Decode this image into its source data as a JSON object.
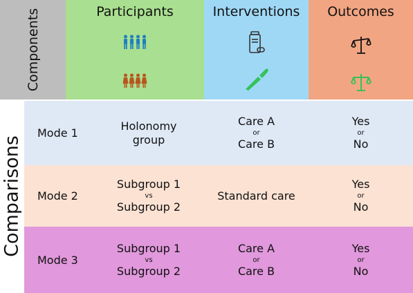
{
  "header": {
    "components": "Components",
    "participants": "Participants",
    "interventions": "Interventions",
    "outcomes": "Outcomes"
  },
  "icons": {
    "participants_top": "people-group-icon",
    "participants_bottom": "people-group-icon",
    "interventions_top": "medicine-bottle-icon",
    "interventions_bottom": "scalpel-icon",
    "outcomes_top": "balance-scale-icon",
    "outcomes_bottom": "balance-scale-icon"
  },
  "colors": {
    "components_bg": "#bdbdbd",
    "participants_bg": "#a9df90",
    "interventions_bg": "#9fd8f5",
    "outcomes_bg": "#f2a582",
    "mode1_bg": "#dfe9f6",
    "mode2_bg": "#fbe2d3",
    "mode3_bg": "#e198dc",
    "people_blue": "#1f7fc0",
    "people_brown": "#b8551e",
    "green_icon": "#35c25a"
  },
  "sidebar": {
    "comparisons": "Comparisons"
  },
  "rows": [
    {
      "mode": "Mode 1",
      "participants": [
        "Holonomy",
        "group"
      ],
      "interventions": {
        "a": "Care A",
        "sep": "or",
        "b": "Care B"
      },
      "outcomes": {
        "a": "Yes",
        "sep": "or",
        "b": "No"
      }
    },
    {
      "mode": "Mode 2",
      "participants": {
        "a": "Subgroup 1",
        "sep": "vs",
        "b": "Subgroup 2"
      },
      "interventions": "Standard care",
      "outcomes": {
        "a": "Yes",
        "sep": "or",
        "b": "No"
      }
    },
    {
      "mode": "Mode 3",
      "participants": {
        "a": "Subgroup 1",
        "sep": "vs",
        "b": "Subgroup 2"
      },
      "interventions": {
        "a": "Care A",
        "sep": "or",
        "b": "Care B"
      },
      "outcomes": {
        "a": "Yes",
        "sep": "or",
        "b": "No"
      }
    }
  ]
}
